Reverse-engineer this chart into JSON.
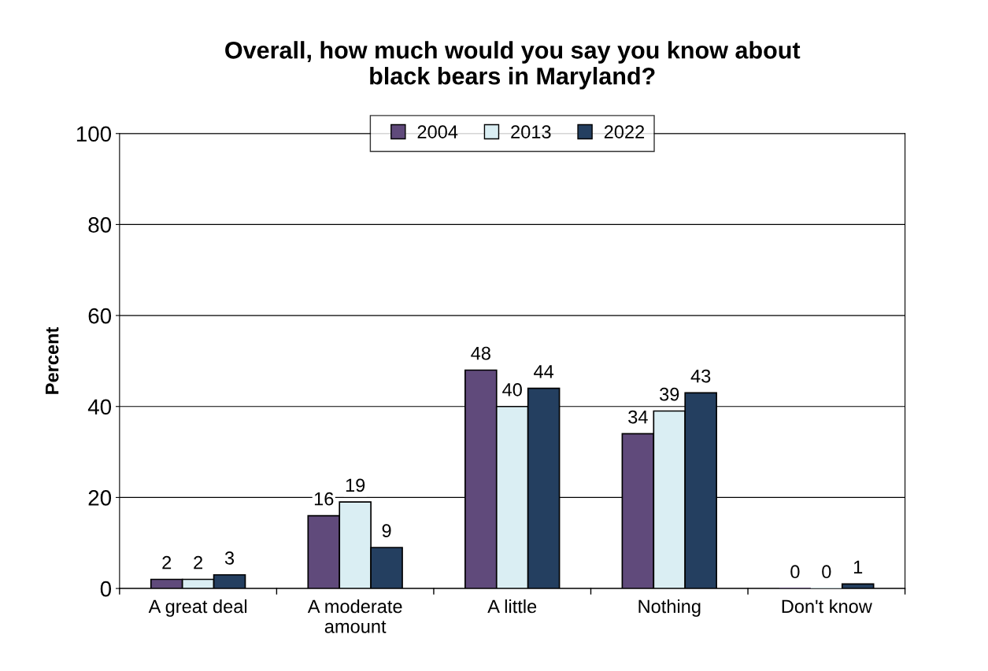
{
  "chart_data": {
    "type": "bar",
    "title": "Overall, how much would you say you know about\nblack bears in Maryland?",
    "ylabel": "Percent",
    "categories": [
      "A great deal",
      "A moderate\namount",
      "A little",
      "Nothing",
      "Don't know"
    ],
    "series": [
      {
        "name": "2004",
        "color": "#604a7b",
        "values": [
          2,
          16,
          48,
          34,
          0
        ]
      },
      {
        "name": "2013",
        "color": "#daeef3",
        "values": [
          2,
          19,
          40,
          39,
          0
        ]
      },
      {
        "name": "2022",
        "color": "#243f60",
        "values": [
          3,
          9,
          44,
          43,
          1
        ]
      }
    ],
    "ylim": [
      0,
      100
    ],
    "yticks": [
      0,
      20,
      40,
      60,
      80,
      100
    ],
    "grid": "y",
    "legend": "top",
    "data_labels": true
  }
}
